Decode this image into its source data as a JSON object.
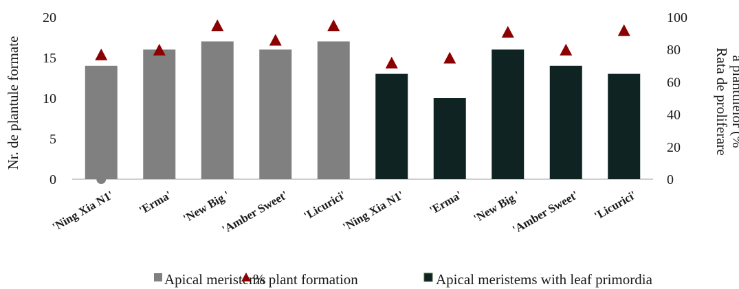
{
  "chart_data": {
    "type": "bar",
    "categories": [
      "'Ning Xia N1'",
      "'Erma'",
      "'New Big '",
      "'Amber Sweet'",
      "'Licurici'",
      "'Ning Xia N1'",
      "'Erma'",
      "'New Big '",
      "'Amber Sweet'",
      "'Licurici'"
    ],
    "series": [
      {
        "name": "Apical meristems",
        "kind": "bar",
        "axis": "left",
        "color": "#808080",
        "values": [
          14,
          16,
          17,
          16,
          17,
          null,
          null,
          null,
          null,
          null
        ]
      },
      {
        "name": "% plant formation",
        "kind": "marker",
        "marker": "triangle",
        "axis": "right",
        "color": "#8b0000",
        "values": [
          77,
          80,
          95,
          86,
          95,
          72,
          75,
          91,
          80,
          92
        ]
      },
      {
        "name": "Apical meristems with leaf primordia",
        "kind": "bar",
        "axis": "left",
        "color": "#0e2322",
        "values": [
          null,
          null,
          null,
          null,
          null,
          13,
          10,
          16,
          14,
          13
        ]
      }
    ],
    "ylabel": "Nr. de plantule formate",
    "ylabel_right": [
      "Rata de proliferare",
      "a plantulelor (%"
    ],
    "ylim": [
      0,
      20
    ],
    "yticks": [
      0,
      5,
      10,
      15,
      20
    ],
    "ylim_right": [
      0,
      100
    ],
    "yticks_right": [
      0,
      20,
      40,
      60,
      80,
      100
    ],
    "legend_position": "bottom",
    "grid": false
  }
}
